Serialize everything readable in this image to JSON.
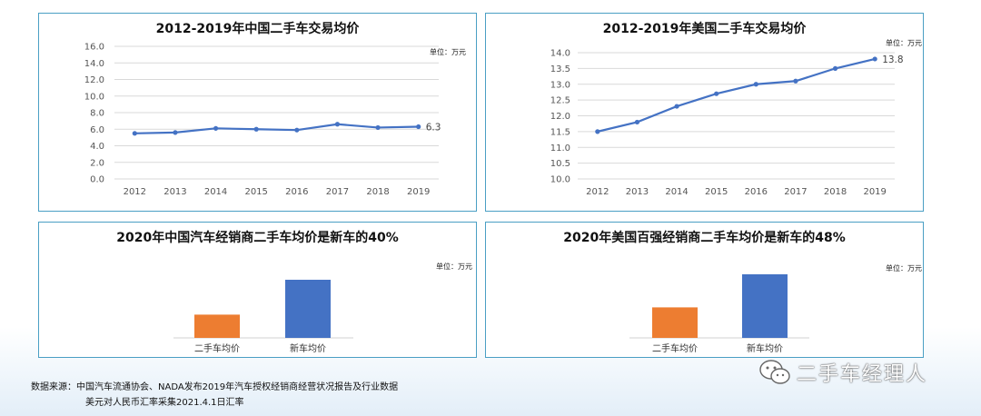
{
  "chart_data": [
    {
      "type": "line",
      "title": "2012-2019年中国二手车交易均价",
      "unit": "单位：万元",
      "x": [
        "2012",
        "2013",
        "2014",
        "2015",
        "2016",
        "2017",
        "2018",
        "2019"
      ],
      "series": [
        {
          "values": [
            5.5,
            5.6,
            6.1,
            6.0,
            5.9,
            6.6,
            6.2,
            6.3
          ],
          "color": "#4472c4"
        }
      ],
      "ylim": [
        0,
        16
      ],
      "yticks": [
        "16.0",
        "14.0",
        "12.0",
        "10.0",
        "8.0",
        "6.0",
        "4.0",
        "2.0",
        "0.0"
      ],
      "ytick_values": [
        16,
        14,
        12,
        10,
        8,
        6,
        4,
        2,
        0
      ],
      "end_label": "6.3",
      "grid": true
    },
    {
      "type": "line",
      "title": "2012-2019年美国二手车交易均价",
      "unit": "单位：万元",
      "x": [
        "2012",
        "2013",
        "2014",
        "2015",
        "2016",
        "2017",
        "2018",
        "2019"
      ],
      "series": [
        {
          "values": [
            11.5,
            11.8,
            12.3,
            12.7,
            13.0,
            13.1,
            13.5,
            13.8
          ],
          "color": "#4472c4"
        }
      ],
      "ylim": [
        10,
        14
      ],
      "yticks": [
        "14.0",
        "13.5",
        "13.0",
        "12.5",
        "12.0",
        "11.5",
        "11.0",
        "10.5",
        "10.0"
      ],
      "ytick_values": [
        14,
        13.5,
        13,
        12.5,
        12,
        11.5,
        11,
        10.5,
        10
      ],
      "end_label": "13.8",
      "grid": true
    },
    {
      "type": "bar",
      "title": "2020年中国汽车经销商二手车均价是新车的40%",
      "unit": "单位：万元",
      "categories": [
        "二手车均价",
        "新车均价"
      ],
      "values": [
        40,
        100
      ],
      "colors": [
        "#ed7d31",
        "#4472c4"
      ]
    },
    {
      "type": "bar",
      "title": "2020年美国百强经销商二手车均价是新车的48%",
      "unit": "单位：万元",
      "categories": [
        "二手车均价",
        "新车均价"
      ],
      "values": [
        48,
        100
      ],
      "colors": [
        "#ed7d31",
        "#4472c4"
      ]
    }
  ],
  "footer": {
    "source_line1": "数据来源：中国汽车流通协会、NADA发布2019年汽车授权经销商经营状况报告及行业数据",
    "source_line2": "美元对人民币汇率采集2021.4.1日汇率",
    "watermark": "二手车经理人"
  }
}
